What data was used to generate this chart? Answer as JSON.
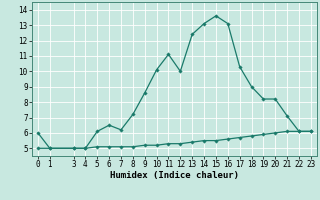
{
  "xlabel": "Humidex (Indice chaleur)",
  "bg_color": "#c8e8e0",
  "line_color": "#1a7a6a",
  "grid_color": "#ffffff",
  "grid_minor_color": "#d8eeea",
  "xlim": [
    -0.5,
    23.5
  ],
  "ylim": [
    4.5,
    14.5
  ],
  "yticks": [
    5,
    6,
    7,
    8,
    9,
    10,
    11,
    12,
    13,
    14
  ],
  "xticks": [
    0,
    1,
    3,
    4,
    5,
    6,
    7,
    8,
    9,
    10,
    11,
    12,
    13,
    14,
    15,
    16,
    17,
    18,
    19,
    20,
    21,
    22,
    23
  ],
  "upper_x": [
    0,
    1,
    3,
    4,
    5,
    6,
    7,
    8,
    9,
    10,
    11,
    12,
    13,
    14,
    15,
    16,
    17,
    18,
    19,
    20,
    21,
    22,
    23
  ],
  "upper_y": [
    6.0,
    5.0,
    5.0,
    5.0,
    6.1,
    6.5,
    6.2,
    7.2,
    8.6,
    10.1,
    11.1,
    10.0,
    12.4,
    13.1,
    13.6,
    13.1,
    10.3,
    9.0,
    8.2,
    8.2,
    7.1,
    6.1,
    6.1
  ],
  "lower_x": [
    0,
    1,
    3,
    4,
    5,
    6,
    7,
    8,
    9,
    10,
    11,
    12,
    13,
    14,
    15,
    16,
    17,
    18,
    19,
    20,
    21,
    22,
    23
  ],
  "lower_y": [
    5.0,
    5.0,
    5.0,
    5.0,
    5.1,
    5.1,
    5.1,
    5.1,
    5.2,
    5.2,
    5.3,
    5.3,
    5.4,
    5.5,
    5.5,
    5.6,
    5.7,
    5.8,
    5.9,
    6.0,
    6.1,
    6.1,
    6.1
  ],
  "xlabel_fontsize": 6.5,
  "tick_fontsize": 5.5,
  "linewidth": 0.9,
  "marker": "D",
  "markersize": 1.8
}
